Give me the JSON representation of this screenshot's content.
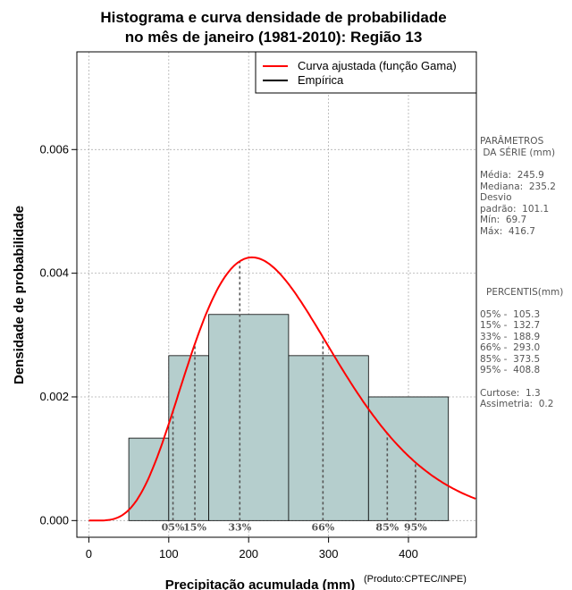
{
  "chart_data": {
    "type": "histogram",
    "title_lines": [
      "Histograma e curva densidade de probabilidade",
      "no mês de janeiro (1981-2010): Região 13"
    ],
    "xlabel": "Precipitação acumulada (mm)",
    "ylabel": "Densidade de probabilidade",
    "credit": "(Produto:CPTEC/INPE)",
    "xlim": [
      -15,
      485
    ],
    "ylim": [
      -0.00027,
      0.00758
    ],
    "x_ticks": [
      0,
      100,
      200,
      300,
      400
    ],
    "y_ticks": [
      0.0,
      0.002,
      0.004,
      0.006
    ],
    "y_tick_labels": [
      "0.000",
      "0.002",
      "0.004",
      "0.006"
    ],
    "grid": true,
    "bins": [
      {
        "start": 50,
        "end": 100,
        "density": 0.001333
      },
      {
        "start": 100,
        "end": 150,
        "density": 0.002667
      },
      {
        "start": 150,
        "end": 250,
        "density": 0.003333
      },
      {
        "start": 250,
        "end": 350,
        "density": 0.002667
      },
      {
        "start": 350,
        "end": 450,
        "density": 0.002
      }
    ],
    "bar_color": "#b5cecd",
    "gamma_fit": {
      "mean": 245.9,
      "sd": 101.1
    },
    "curve_color": "#ff0000",
    "legend": {
      "position": "top-right",
      "entries": [
        {
          "label": "Curva ajustada (função Gama)",
          "color": "#ff0000"
        },
        {
          "label": "Empírica",
          "color": "#000000"
        }
      ]
    },
    "percentile_lines": [
      {
        "label": "05%",
        "x": 105.3
      },
      {
        "label": "15%",
        "x": 132.7
      },
      {
        "label": "33%",
        "x": 188.9
      },
      {
        "label": "66%",
        "x": 293.0
      },
      {
        "label": "85%",
        "x": 373.5
      },
      {
        "label": "95%",
        "x": 408.8
      }
    ]
  },
  "stats_panel": {
    "params_title_1": "PARÂMETROS",
    "params_title_2": " DA SÉRIE (mm)",
    "rows": [
      "Média:  245.9",
      "Mediana:  235.2",
      "Desvio",
      "padrão:  101.1",
      "Mín:  69.7",
      "Máx:  416.7"
    ],
    "percentis_title": "PERCENTIS(mm)",
    "percentis": [
      "05% -  105.3",
      "15% -  132.7",
      "33% -  188.9",
      "66% -  293.0",
      "85% -  373.5",
      "95% -  408.8"
    ],
    "extras": [
      "Curtose:  1.3",
      "Assimetria:  0.2"
    ]
  }
}
